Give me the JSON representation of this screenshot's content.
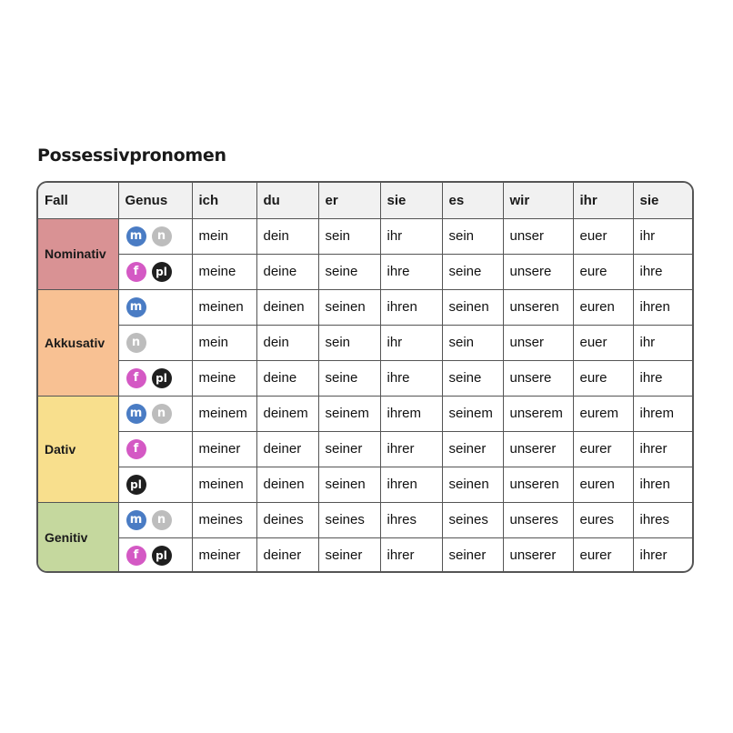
{
  "title": "Possessivpronomen",
  "header": [
    "Fall",
    "Genus",
    "ich",
    "du",
    "er",
    "sie",
    "es",
    "wir",
    "ihr",
    "sie"
  ],
  "genus_colors": {
    "m": "#4a7cc4",
    "n": "#bdbdbd",
    "f": "#d459c4",
    "pl": "#1f1f1f"
  },
  "cases": [
    {
      "name": "Nominativ",
      "color": "#d99294",
      "rows": [
        {
          "genus": [
            "m",
            "n"
          ],
          "forms": [
            "mein",
            "dein",
            "sein",
            "ihr",
            "sein",
            "unser",
            "euer",
            "ihr"
          ]
        },
        {
          "genus": [
            "f",
            "pl"
          ],
          "forms": [
            "meine",
            "deine",
            "seine",
            "ihre",
            "seine",
            "unsere",
            "eure",
            "ihre"
          ]
        }
      ]
    },
    {
      "name": "Akkusativ",
      "color": "#f8c193",
      "rows": [
        {
          "genus": [
            "m"
          ],
          "forms": [
            "meinen",
            "deinen",
            "seinen",
            "ihren",
            "seinen",
            "unseren",
            "euren",
            "ihren"
          ]
        },
        {
          "genus": [
            "n"
          ],
          "forms": [
            "mein",
            "dein",
            "sein",
            "ihr",
            "sein",
            "unser",
            "euer",
            "ihr"
          ]
        },
        {
          "genus": [
            "f",
            "pl"
          ],
          "forms": [
            "meine",
            "deine",
            "seine",
            "ihre",
            "seine",
            "unsere",
            "eure",
            "ihre"
          ]
        }
      ]
    },
    {
      "name": "Dativ",
      "color": "#f8df8d",
      "rows": [
        {
          "genus": [
            "m",
            "n"
          ],
          "forms": [
            "meinem",
            "deinem",
            "seinem",
            "ihrem",
            "seinem",
            "unserem",
            "eurem",
            "ihrem"
          ]
        },
        {
          "genus": [
            "f"
          ],
          "forms": [
            "meiner",
            "deiner",
            "seiner",
            "ihrer",
            "seiner",
            "unserer",
            "eurer",
            "ihrer"
          ]
        },
        {
          "genus": [
            "pl"
          ],
          "forms": [
            "meinen",
            "deinen",
            "seinen",
            "ihren",
            "seinen",
            "unseren",
            "euren",
            "ihren"
          ]
        }
      ]
    },
    {
      "name": "Genitiv",
      "color": "#c5d89e",
      "rows": [
        {
          "genus": [
            "m",
            "n"
          ],
          "forms": [
            "meines",
            "deines",
            "seines",
            "ihres",
            "seines",
            "unseres",
            "eures",
            "ihres"
          ]
        },
        {
          "genus": [
            "f",
            "pl"
          ],
          "forms": [
            "meiner",
            "deiner",
            "seiner",
            "ihrer",
            "seiner",
            "unserer",
            "eurer",
            "ihrer"
          ]
        }
      ]
    }
  ]
}
